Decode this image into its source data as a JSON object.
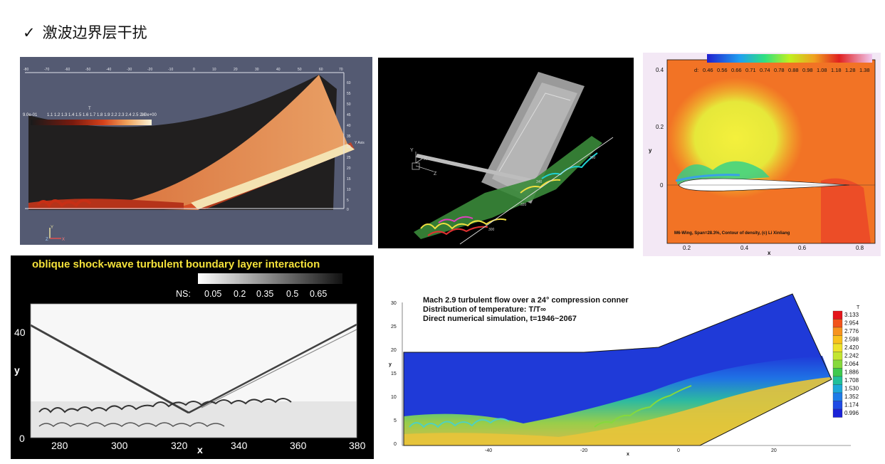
{
  "title": {
    "check": "✓",
    "text": "激波边界层干扰"
  },
  "panels": {
    "p1": {
      "top_ticks": [
        "-80",
        "-70",
        "-60",
        "-50",
        "-40",
        "-30",
        "-20",
        "-10",
        "0",
        "10",
        "20",
        "30",
        "40",
        "50",
        "60",
        "70"
      ],
      "y_ticks": [
        "60",
        "55",
        "50",
        "45",
        "40",
        "35",
        "30",
        "25",
        "20",
        "15",
        "10",
        "5",
        "0"
      ],
      "y_axis_label": "Y Axis",
      "legend_var": "T",
      "legend_min": "9.0e-01",
      "legend_mid": "1.1 1.2 1.3 1.4 1.5 1.6 1.7 1.8 1.9 2.2 2.3 2.4 2.5 2.6",
      "legend_max": "3.0e+00",
      "axes_triad": {
        "y": "Y",
        "z": "Z",
        "x": "X"
      }
    },
    "p2": {
      "axis_ticks": [
        "360",
        "340",
        "320",
        "300"
      ],
      "triad": {
        "y": "Y",
        "x": "X",
        "z": "Z"
      }
    },
    "p3": {
      "legend_prefix": "d:",
      "legend_values": [
        "0.46",
        "0.56",
        "0.66",
        "0.71",
        "0.74",
        "0.78",
        "0.88",
        "0.98",
        "1.08",
        "1.18",
        "1.28",
        "1.38"
      ],
      "y_ticks": [
        "0.4",
        "0.2",
        "0"
      ],
      "x_ticks": [
        "0.2",
        "0.4",
        "0.6",
        "0.8"
      ],
      "xlabel": "x",
      "ylabel": "y",
      "caption": "M6-Wing, Span=28.3%, Contour of density, (c) Li Xinliang"
    },
    "p4": {
      "title": "oblique shock-wave turbulent boundary layer interaction",
      "legend_label": "NS:",
      "legend_values": [
        "0.05",
        "0.2",
        "0.35",
        "0.5",
        "0.65"
      ],
      "y_ticks": [
        "40",
        "0"
      ],
      "x_ticks": [
        "280",
        "300",
        "320",
        "340",
        "360",
        "380"
      ],
      "xlabel": "x",
      "ylabel": "y"
    },
    "p5": {
      "line1": "Mach 2.9 turbulent flow over a 24° compression conner",
      "line2": "Distribution of temperature: T/T∞",
      "line3": "Direct numerical simulation, t=1946~2067",
      "y_ticks": [
        "30",
        "25",
        "20",
        "15",
        "10",
        "5",
        "0"
      ],
      "x_ticks": [
        "-40",
        "-20",
        "0",
        "20"
      ],
      "xlabel": "x",
      "ylabel": "y",
      "legend_title": "T",
      "legend_values": [
        "3.133",
        "2.954",
        "2.776",
        "2.598",
        "2.420",
        "2.242",
        "2.064",
        "1.886",
        "1.708",
        "1.530",
        "1.352",
        "1.174",
        "0.996"
      ],
      "legend_colors": [
        "#e4141b",
        "#f2531b",
        "#f7931e",
        "#f9c11c",
        "#eee22a",
        "#c3e530",
        "#86d93c",
        "#3ec94e",
        "#21c09a",
        "#1ea8d8",
        "#1e7be8",
        "#1f4be6",
        "#1a22d8"
      ]
    }
  }
}
